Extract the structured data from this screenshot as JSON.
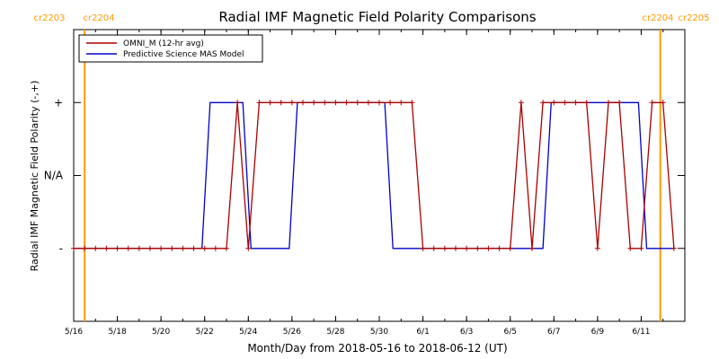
{
  "chart_data": {
    "type": "line",
    "title": "Radial IMF Magnetic Field Polarity Comparisons",
    "xlabel": "Month/Day from 2018-05-16 to 2018-06-12 (UT)",
    "ylabel": "Radial IMF Magnetic Field Polarity (-,+)",
    "x_range": [
      "2018-05-16T00:00",
      "2018-06-13T00:00"
    ],
    "x_ticks": [
      {
        "label": "5/16",
        "date": "2018-05-16"
      },
      {
        "label": "5/18",
        "date": "2018-05-18"
      },
      {
        "label": "5/20",
        "date": "2018-05-20"
      },
      {
        "label": "5/22",
        "date": "2018-05-22"
      },
      {
        "label": "5/24",
        "date": "2018-05-24"
      },
      {
        "label": "5/26",
        "date": "2018-05-26"
      },
      {
        "label": "5/28",
        "date": "2018-05-28"
      },
      {
        "label": "5/30",
        "date": "2018-05-30"
      },
      {
        "label": "6/1",
        "date": "2018-06-01"
      },
      {
        "label": "6/3",
        "date": "2018-06-03"
      },
      {
        "label": "6/5",
        "date": "2018-06-05"
      },
      {
        "label": "6/7",
        "date": "2018-06-07"
      },
      {
        "label": "6/9",
        "date": "2018-06-09"
      },
      {
        "label": "6/11",
        "date": "2018-06-11"
      }
    ],
    "y_ticks": [
      {
        "label": "+",
        "value": 1
      },
      {
        "label": "N/A",
        "value": 0
      },
      {
        "label": "-",
        "value": -1
      }
    ],
    "ylim": [
      -2,
      2
    ],
    "carrington_markers": [
      {
        "date": "2018-05-16T12:00",
        "left_label": "cr2203",
        "right_label": "cr2204"
      },
      {
        "date": "2018-06-11T21:00",
        "left_label": "cr2204",
        "right_label": "cr2205"
      }
    ],
    "marker_color": "#ff9900",
    "legend_position": "top-left",
    "series": [
      {
        "name": "OMNI_M (12-hr avg)",
        "color": "#aa0000",
        "marker": "plus",
        "points": [
          [
            "2018-05-16T00:00",
            -1
          ],
          [
            "2018-05-16T12:00",
            -1
          ],
          [
            "2018-05-17T00:00",
            -1
          ],
          [
            "2018-05-17T12:00",
            -1
          ],
          [
            "2018-05-18T00:00",
            -1
          ],
          [
            "2018-05-18T12:00",
            -1
          ],
          [
            "2018-05-19T00:00",
            -1
          ],
          [
            "2018-05-19T12:00",
            -1
          ],
          [
            "2018-05-20T00:00",
            -1
          ],
          [
            "2018-05-20T12:00",
            -1
          ],
          [
            "2018-05-21T00:00",
            -1
          ],
          [
            "2018-05-21T12:00",
            -1
          ],
          [
            "2018-05-22T00:00",
            -1
          ],
          [
            "2018-05-22T12:00",
            -1
          ],
          [
            "2018-05-23T00:00",
            -1
          ],
          [
            "2018-05-23T12:00",
            1
          ],
          [
            "2018-05-24T00:00",
            -1
          ],
          [
            "2018-05-24T12:00",
            1
          ],
          [
            "2018-05-25T00:00",
            1
          ],
          [
            "2018-05-25T12:00",
            1
          ],
          [
            "2018-05-26T00:00",
            1
          ],
          [
            "2018-05-26T12:00",
            1
          ],
          [
            "2018-05-27T00:00",
            1
          ],
          [
            "2018-05-27T12:00",
            1
          ],
          [
            "2018-05-28T00:00",
            1
          ],
          [
            "2018-05-28T12:00",
            1
          ],
          [
            "2018-05-29T00:00",
            1
          ],
          [
            "2018-05-29T12:00",
            1
          ],
          [
            "2018-05-30T00:00",
            1
          ],
          [
            "2018-05-30T12:00",
            1
          ],
          [
            "2018-05-31T00:00",
            1
          ],
          [
            "2018-05-31T12:00",
            1
          ],
          [
            "2018-06-01T00:00",
            -1
          ],
          [
            "2018-06-01T12:00",
            -1
          ],
          [
            "2018-06-02T00:00",
            -1
          ],
          [
            "2018-06-02T12:00",
            -1
          ],
          [
            "2018-06-03T00:00",
            -1
          ],
          [
            "2018-06-03T12:00",
            -1
          ],
          [
            "2018-06-04T00:00",
            -1
          ],
          [
            "2018-06-04T12:00",
            -1
          ],
          [
            "2018-06-05T00:00",
            -1
          ],
          [
            "2018-06-05T12:00",
            1
          ],
          [
            "2018-06-06T00:00",
            -1
          ],
          [
            "2018-06-06T12:00",
            1
          ],
          [
            "2018-06-07T00:00",
            1
          ],
          [
            "2018-06-07T12:00",
            1
          ],
          [
            "2018-06-08T00:00",
            1
          ],
          [
            "2018-06-08T12:00",
            1
          ],
          [
            "2018-06-09T00:00",
            -1
          ],
          [
            "2018-06-09T12:00",
            1
          ],
          [
            "2018-06-10T00:00",
            1
          ],
          [
            "2018-06-10T12:00",
            -1
          ],
          [
            "2018-06-11T00:00",
            -1
          ],
          [
            "2018-06-11T12:00",
            1
          ],
          [
            "2018-06-12T00:00",
            1
          ],
          [
            "2018-06-12T12:00",
            -1
          ]
        ]
      },
      {
        "name": "Predictive Science MAS Model",
        "color": "#0000cc",
        "points": [
          [
            "2018-05-16T00:00",
            -1
          ],
          [
            "2018-05-21T21:00",
            -1
          ],
          [
            "2018-05-22T06:00",
            1
          ],
          [
            "2018-05-23T18:00",
            1
          ],
          [
            "2018-05-24T03:00",
            -1
          ],
          [
            "2018-05-25T21:00",
            -1
          ],
          [
            "2018-05-26T06:00",
            1
          ],
          [
            "2018-05-30T06:00",
            1
          ],
          [
            "2018-05-30T15:00",
            -1
          ],
          [
            "2018-06-06T12:00",
            -1
          ],
          [
            "2018-06-06T21:00",
            1
          ],
          [
            "2018-06-10T21:00",
            1
          ],
          [
            "2018-06-11T06:00",
            -1
          ],
          [
            "2018-06-12T12:00",
            -1
          ]
        ]
      }
    ]
  }
}
